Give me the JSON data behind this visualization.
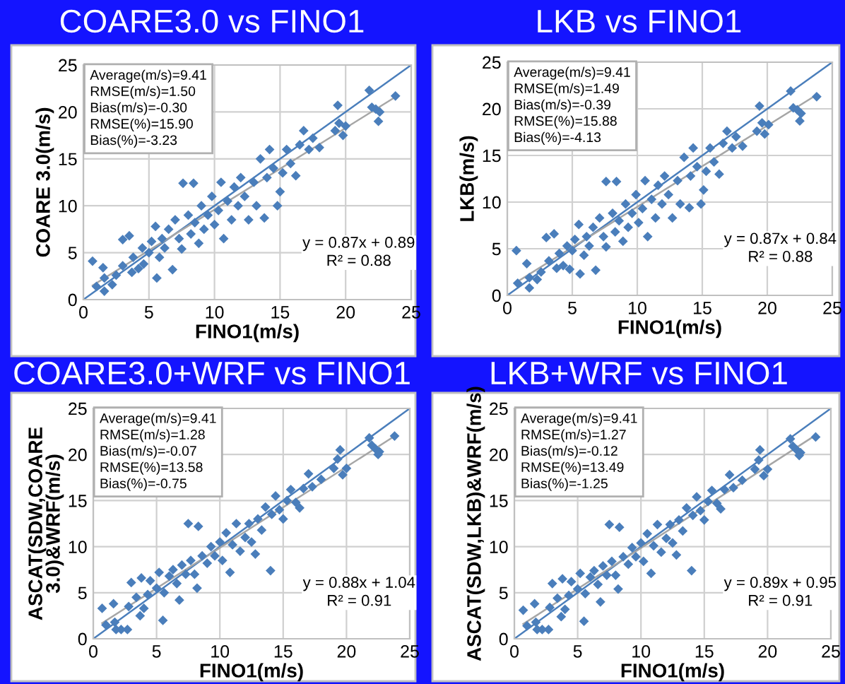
{
  "chart_data": [
    {
      "type": "scatter",
      "title": "COARE3.0 vs FINO1",
      "xlabel": "FINO1(m/s)",
      "ylabel": "COARE 3.0(m/s)",
      "xlim": [
        0,
        25
      ],
      "ylim": [
        0,
        25
      ],
      "xticks": [
        0,
        5,
        10,
        15,
        20,
        25
      ],
      "yticks": [
        0,
        5,
        10,
        15,
        20,
        25
      ],
      "grid": true,
      "annotations": [
        "Average(m/s)=9.41\nRMSE(m/s)=1.50\nBias(m/s)=-0.30\nRMSE(%)=15.90\nBias(%)=-3.23",
        "y = 0.87x + 0.89\nR² = 0.88"
      ],
      "series": [
        {
          "marker": "diamond",
          "color": "#4a7ebb",
          "x": [
            0.7,
            1.0,
            1.6,
            1.6,
            1.5,
            2.2,
            2.5,
            3.0,
            3.0,
            3.5,
            3.7,
            3.8,
            4.2,
            4.5,
            4.6,
            5.0,
            5.2,
            5.5,
            5.6,
            5.8,
            6.0,
            6.2,
            6.5,
            6.8,
            7.0,
            7.3,
            7.6,
            7.5,
            8.0,
            8.2,
            8.4,
            8.5,
            8.8,
            9.0,
            9.2,
            9.5,
            9.8,
            10.0,
            10.3,
            10.5,
            10.7,
            11.0,
            11.3,
            11.5,
            11.8,
            12.0,
            12.3,
            12.6,
            13.0,
            13.2,
            13.5,
            13.8,
            14.0,
            14.2,
            14.5,
            14.8,
            15.0,
            15.2,
            15.5,
            15.8,
            16.2,
            16.5,
            16.8,
            17.2,
            17.5,
            18.0,
            19.2,
            19.4,
            19.5,
            19.8,
            20.0,
            21.8,
            22.0,
            22.3,
            22.5,
            22.6,
            23.8
          ],
          "values": [
            4.1,
            1.4,
            0.9,
            2.3,
            3.4,
            1.6,
            2.6,
            6.4,
            3.6,
            6.8,
            2.9,
            4.5,
            3.3,
            5.5,
            3.8,
            5.0,
            6.2,
            7.8,
            2.3,
            4.5,
            6.5,
            5.5,
            7.5,
            3.2,
            8.5,
            6.5,
            12.4,
            5.4,
            9.0,
            7.0,
            12.4,
            8.2,
            6.0,
            10.0,
            7.5,
            9.0,
            11.0,
            8.0,
            9.5,
            12.5,
            6.5,
            10.5,
            8.5,
            12.0,
            10.0,
            13.0,
            11.0,
            8.5,
            12.5,
            10.0,
            15.0,
            8.7,
            13.0,
            16.0,
            14.0,
            10.0,
            11.5,
            13.5,
            16.0,
            14.5,
            13.2,
            16.5,
            18.0,
            16.0,
            17.2,
            16.2,
            18.0,
            20.7,
            18.8,
            17.5,
            18.5,
            22.3,
            20.5,
            20.3,
            19.0,
            20.0,
            21.7
          ]
        },
        {
          "type": "line",
          "color": "#4a7ebb",
          "x": [
            0,
            25
          ],
          "values": [
            0,
            25
          ]
        },
        {
          "type": "line",
          "color": "#a6a6a6",
          "x": [
            0.7,
            23.8
          ],
          "values": [
            1.5,
            21.6
          ]
        }
      ]
    },
    {
      "type": "scatter",
      "title": "LKB vs FINO1",
      "xlabel": "FINO1(m/s)",
      "ylabel": "LKB(m/s)",
      "xlim": [
        0,
        25
      ],
      "ylim": [
        0,
        25
      ],
      "xticks": [
        0,
        5,
        10,
        15,
        20,
        25
      ],
      "yticks": [
        0,
        5,
        10,
        15,
        20,
        25
      ],
      "grid": true,
      "annotations": [
        "Average(m/s)=9.41\nRMSE(m/s)=1.49\nBias(m/s)=-0.39\nRMSE(%)=15.88\nBias(%)=-4.13",
        "y = 0.87x + 0.84\nR² = 0.88"
      ],
      "series": [
        {
          "marker": "diamond",
          "color": "#4a7ebb",
          "x": [
            0.7,
            0.8,
            1.7,
            1.7,
            1.5,
            2.3,
            2.6,
            3.0,
            3.2,
            3.6,
            3.8,
            4.0,
            4.3,
            4.6,
            4.8,
            5.0,
            5.2,
            5.5,
            5.6,
            5.9,
            6.1,
            6.3,
            6.6,
            6.8,
            7.1,
            7.4,
            7.6,
            7.6,
            8.1,
            8.3,
            8.4,
            8.6,
            8.9,
            9.1,
            9.3,
            9.6,
            9.9,
            10.1,
            10.4,
            10.6,
            10.8,
            11.1,
            11.4,
            11.6,
            11.9,
            12.1,
            12.4,
            12.7,
            13.1,
            13.3,
            13.6,
            14.0,
            14.1,
            14.3,
            14.6,
            14.9,
            15.1,
            15.3,
            15.6,
            15.9,
            16.3,
            16.6,
            16.9,
            17.3,
            17.6,
            18.1,
            19.2,
            19.4,
            19.6,
            19.8,
            20.1,
            21.8,
            22.0,
            22.3,
            22.5,
            22.6,
            23.8
          ],
          "values": [
            4.8,
            1.3,
            0.8,
            1.9,
            3.4,
            1.7,
            2.5,
            6.2,
            3.7,
            6.6,
            2.9,
            4.5,
            3.2,
            5.3,
            2.8,
            4.8,
            6.0,
            7.6,
            2.3,
            4.3,
            6.3,
            5.3,
            7.3,
            2.7,
            8.3,
            6.3,
            12.2,
            5.2,
            8.8,
            6.8,
            12.2,
            8.0,
            5.8,
            9.8,
            7.3,
            8.8,
            10.8,
            7.8,
            9.3,
            12.3,
            6.3,
            10.3,
            8.3,
            11.8,
            9.8,
            12.8,
            10.8,
            8.3,
            12.3,
            9.8,
            14.8,
            9.4,
            12.8,
            15.8,
            13.8,
            9.8,
            11.3,
            13.3,
            15.8,
            14.3,
            13.0,
            16.3,
            17.6,
            15.8,
            17.0,
            16.0,
            17.6,
            20.3,
            18.5,
            17.3,
            18.3,
            21.9,
            20.1,
            19.9,
            18.7,
            19.5,
            21.3
          ]
        },
        {
          "type": "line",
          "color": "#4a7ebb",
          "x": [
            0,
            25
          ],
          "values": [
            0,
            25
          ]
        },
        {
          "type": "line",
          "color": "#a6a6a6",
          "x": [
            0.7,
            23.8
          ],
          "values": [
            1.4,
            21.5
          ]
        }
      ]
    },
    {
      "type": "scatter",
      "title": "COARE3.0+WRF vs FINO1",
      "xlabel": "FINO1(m/s)",
      "ylabel": "ASCAT(SDW,COARE\n3.0)&WRF(m/s)",
      "xlim": [
        0,
        25
      ],
      "ylim": [
        0,
        25
      ],
      "xticks": [
        0,
        5,
        10,
        15,
        20,
        25
      ],
      "yticks": [
        0,
        5,
        10,
        15,
        20,
        25
      ],
      "grid": true,
      "annotations": [
        "Average(m/s)=9.41\nRMSE(m/s)=1.28\nBias(m/s)=-0.07\nRMSE(%)=13.58\nBias(%)=-0.75",
        "y = 0.88x + 1.04\nR² = 0.91"
      ],
      "series": [
        {
          "marker": "diamond",
          "color": "#4a7ebb",
          "x": [
            0.7,
            1.0,
            1.6,
            1.7,
            2.2,
            1.8,
            2.7,
            2.8,
            3.0,
            3.4,
            3.7,
            3.8,
            4.0,
            4.3,
            4.5,
            5.0,
            5.2,
            5.5,
            5.6,
            6.0,
            6.3,
            6.6,
            6.8,
            7.0,
            7.3,
            7.5,
            7.7,
            8.0,
            8.3,
            8.2,
            8.6,
            9.0,
            9.3,
            9.6,
            10.0,
            10.2,
            10.5,
            10.8,
            11.0,
            11.3,
            11.6,
            12.0,
            12.3,
            12.5,
            12.8,
            13.0,
            13.3,
            13.6,
            14.0,
            14.1,
            14.4,
            14.7,
            15.0,
            15.3,
            15.6,
            16.0,
            16.3,
            16.6,
            17.0,
            17.3,
            18.0,
            19.0,
            19.3,
            19.5,
            19.7,
            20.0,
            21.8,
            22.0,
            22.3,
            22.5,
            22.6,
            23.8
          ],
          "values": [
            3.3,
            1.5,
            3.8,
            1.8,
            1.0,
            1.0,
            1.0,
            3.5,
            6.1,
            4.5,
            2.5,
            6.6,
            3.3,
            4.8,
            6.3,
            5.5,
            7.2,
            2.0,
            5.0,
            6.8,
            7.5,
            6.0,
            4.2,
            8.0,
            7.0,
            12.5,
            8.5,
            7.0,
            12.2,
            5.5,
            9.0,
            8.2,
            10.0,
            9.0,
            10.5,
            8.5,
            11.5,
            7.2,
            10.2,
            12.5,
            9.5,
            11.0,
            12.5,
            10.5,
            9.2,
            13.0,
            11.8,
            14.3,
            7.4,
            13.5,
            15.5,
            14.0,
            13.0,
            15.0,
            16.2,
            14.8,
            14.2,
            16.3,
            17.9,
            16.5,
            17.3,
            18.5,
            19.5,
            20.5,
            17.8,
            18.5,
            21.8,
            21.0,
            20.6,
            20.0,
            20.3,
            22.0
          ]
        },
        {
          "type": "line",
          "color": "#4a7ebb",
          "x": [
            0,
            25
          ],
          "values": [
            0,
            25
          ]
        },
        {
          "type": "line",
          "color": "#a6a6a6",
          "x": [
            0.7,
            23.8
          ],
          "values": [
            1.7,
            22.0
          ]
        }
      ]
    },
    {
      "type": "scatter",
      "title": "LKB+WRF vs FINO1",
      "xlabel": "FINO1(m/s)",
      "ylabel": "ASCAT(SDW,LKB)&WRF(m/s)",
      "xlim": [
        0,
        25
      ],
      "ylim": [
        0,
        25
      ],
      "xticks": [
        0,
        5,
        10,
        15,
        20,
        25
      ],
      "yticks": [
        0,
        5,
        10,
        15,
        20,
        25
      ],
      "grid": true,
      "annotations": [
        "Average(m/s)=9.41\nRMSE(m/s)=1.27\nBias(m/s)=-0.12\nRMSE(%)=13.49\nBias(%)=-1.25",
        "y = 0.89x + 0.95\nR² = 0.91"
      ],
      "series": [
        {
          "marker": "diamond",
          "color": "#4a7ebb",
          "x": [
            0.7,
            1.0,
            1.6,
            1.7,
            2.2,
            1.8,
            2.7,
            2.8,
            3.0,
            3.4,
            3.7,
            3.8,
            4.0,
            4.3,
            4.5,
            5.0,
            5.2,
            5.5,
            5.6,
            6.0,
            6.3,
            6.6,
            6.8,
            7.0,
            7.3,
            7.5,
            7.7,
            8.0,
            8.3,
            8.2,
            8.6,
            9.0,
            9.3,
            9.6,
            10.0,
            10.2,
            10.5,
            10.8,
            11.0,
            11.3,
            11.6,
            12.0,
            12.3,
            12.5,
            12.8,
            13.0,
            13.3,
            13.6,
            14.0,
            14.1,
            14.4,
            14.7,
            15.0,
            15.3,
            15.6,
            16.0,
            16.3,
            16.6,
            17.0,
            17.3,
            18.0,
            19.0,
            19.3,
            19.4,
            19.7,
            20.0,
            21.8,
            22.0,
            22.3,
            22.5,
            22.6,
            23.8
          ],
          "values": [
            3.1,
            1.4,
            3.8,
            1.8,
            1.0,
            1.0,
            1.0,
            3.4,
            6.0,
            4.4,
            2.4,
            6.5,
            3.2,
            4.7,
            6.2,
            5.4,
            7.1,
            1.9,
            4.9,
            6.7,
            7.4,
            5.9,
            4.0,
            7.9,
            6.9,
            12.4,
            8.4,
            6.9,
            12.1,
            5.4,
            8.9,
            8.1,
            9.9,
            8.9,
            10.4,
            8.4,
            11.4,
            7.1,
            10.1,
            12.4,
            9.4,
            10.9,
            12.4,
            10.4,
            9.1,
            12.9,
            11.7,
            14.2,
            7.4,
            13.4,
            15.4,
            13.9,
            12.9,
            14.9,
            16.1,
            14.7,
            14.1,
            16.2,
            17.8,
            16.4,
            17.2,
            18.4,
            19.4,
            20.5,
            17.7,
            18.4,
            21.7,
            20.9,
            20.5,
            19.9,
            20.2,
            21.9
          ]
        },
        {
          "type": "line",
          "color": "#4a7ebb",
          "x": [
            0,
            25
          ],
          "values": [
            0,
            25
          ]
        },
        {
          "type": "line",
          "color": "#a6a6a6",
          "x": [
            0.7,
            23.8
          ],
          "values": [
            1.6,
            22.1
          ]
        }
      ]
    }
  ]
}
